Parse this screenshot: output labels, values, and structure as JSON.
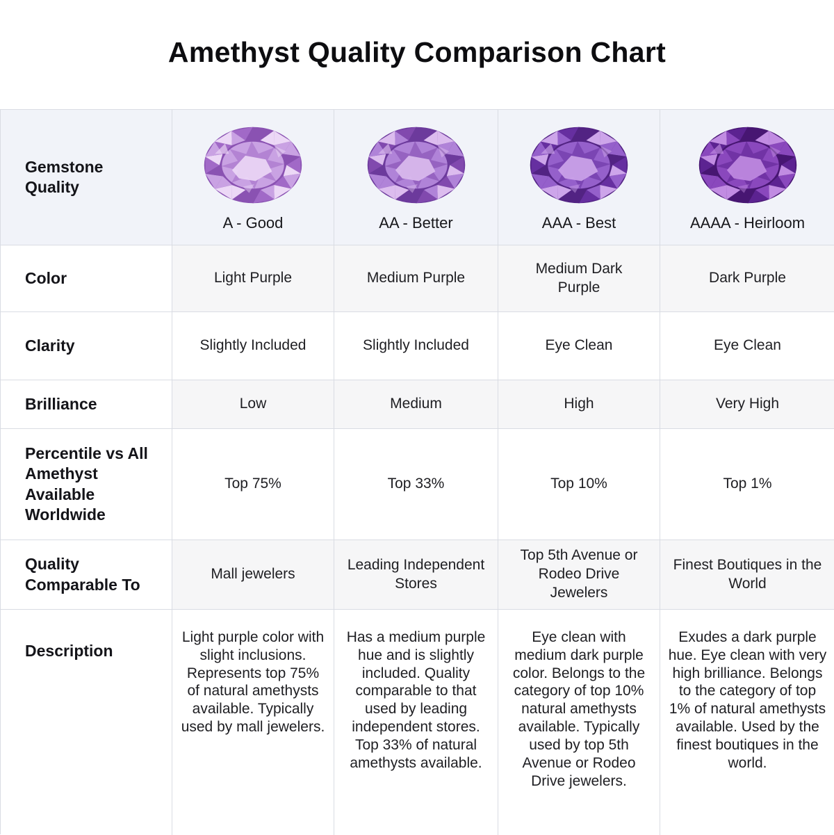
{
  "page": {
    "title": "Amethyst Quality Comparison Chart"
  },
  "table": {
    "corner_label": "Gemstone Quality",
    "grades": [
      {
        "label": "A - Good",
        "gem_name": "light-purple-amethyst",
        "gem_colors": {
          "light": "#ecd8f6",
          "mid": "#c9a2e3",
          "dark": "#a169c7",
          "deep": "#8a52b2"
        }
      },
      {
        "label": "AA - Better",
        "gem_name": "medium-purple-amethyst",
        "gem_colors": {
          "light": "#dcbcee",
          "mid": "#b083d8",
          "dark": "#8149ae",
          "deep": "#6c3a9c"
        }
      },
      {
        "label": "AAA - Best",
        "gem_name": "medium-dark-purple-amethyst",
        "gem_colors": {
          "light": "#cda5ea",
          "mid": "#9560cb",
          "dark": "#662fa0",
          "deep": "#522383"
        }
      },
      {
        "label": "AAAA - Heirloom",
        "gem_name": "dark-purple-amethyst",
        "gem_colors": {
          "light": "#c18ce2",
          "mid": "#8a48bd",
          "dark": "#5c2391",
          "deep": "#471672"
        }
      }
    ],
    "rows": [
      {
        "label": "Color",
        "values": [
          "Light Purple",
          "Medium Purple",
          "Medium Dark Purple",
          "Dark Purple"
        ]
      },
      {
        "label": "Clarity",
        "values": [
          "Slightly Included",
          "Slightly Included",
          "Eye Clean",
          "Eye Clean"
        ]
      },
      {
        "label": "Brilliance",
        "values": [
          "Low",
          "Medium",
          "High",
          "Very High"
        ]
      },
      {
        "label": "Percentile vs All Amethyst Available Worldwide",
        "values": [
          "Top 75%",
          "Top 33%",
          "Top 10%",
          "Top 1%"
        ]
      },
      {
        "label": "Quality Comparable To",
        "values": [
          "Mall jewelers",
          "Leading Independent Stores",
          "Top 5th Avenue or Rodeo Drive Jewelers",
          "Finest Boutiques in the World"
        ]
      },
      {
        "label": "Description",
        "values": [
          "Light purple color with slight inclusions. Represents top 75% of natural amethysts available. Typically used by mall jewelers.",
          "Has a medium purple hue and is slightly included. Quality comparable to that used by leading independent stores. Top 33% of natural amethysts available.",
          "Eye clean with medium dark purple color. Belongs to the category of top 10% natural amethysts available. Typically used by top 5th Avenue or Rodeo Drive jewelers.",
          "Exudes a dark purple hue. Eye clean with very high brilliance. Belongs to the category of top 1% of natural amethysts available. Used by the finest boutiques in the world."
        ]
      }
    ]
  }
}
